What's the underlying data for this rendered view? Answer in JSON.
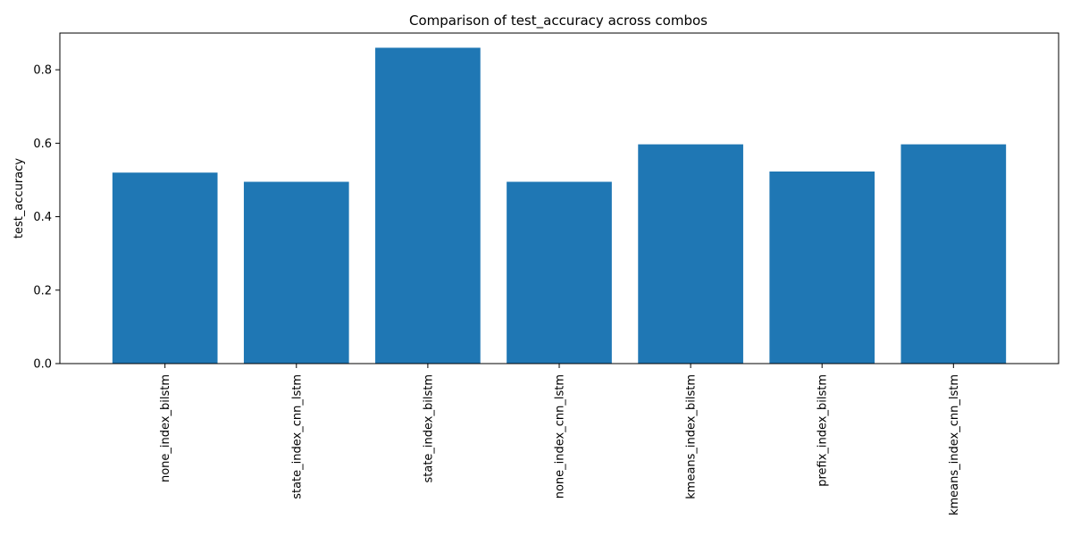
{
  "chart_data": {
    "type": "bar",
    "title": "Comparison of test_accuracy across combos",
    "xlabel": "",
    "ylabel": "test_accuracy",
    "categories": [
      "none_index_bilstm",
      "state_index_cnn_lstm",
      "state_index_bilstm",
      "none_index_cnn_lstm",
      "kmeans_index_bilstm",
      "prefix_index_bilstm",
      "kmeans_index_cnn_lstm"
    ],
    "values": [
      0.52,
      0.495,
      0.86,
      0.495,
      0.597,
      0.523,
      0.597
    ],
    "ylim": [
      0,
      0.9
    ],
    "yticks": [
      "0.0",
      "0.2",
      "0.4",
      "0.6",
      "0.8"
    ],
    "bar_color": "#1f77b4",
    "grid": false,
    "legend": "none"
  }
}
